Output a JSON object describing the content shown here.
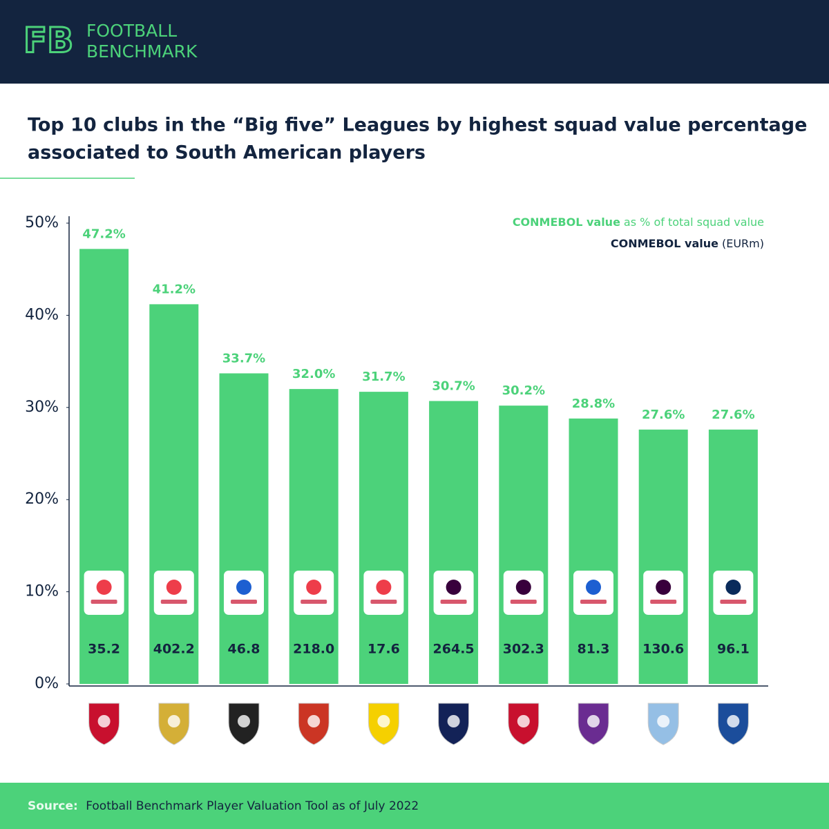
{
  "header": {
    "logo_mark": "FB",
    "brand_line1": "FOOTBALL",
    "brand_line2": "BENCHMARK"
  },
  "chart_data": {
    "type": "bar",
    "title": [
      "Top 10 clubs in the “Big five” Leagues by highest squad value percentage",
      "associated to South American players"
    ],
    "legend": [
      {
        "bold": "CONMEBOL value",
        "text": "as % of total squad value",
        "color": "#4cd27a"
      },
      {
        "bold": "CONMEBOL value",
        "text": "(EURm)",
        "color": "#13243f"
      }
    ],
    "categories": [
      null,
      null,
      null,
      null,
      null,
      null,
      null,
      null,
      null,
      null
    ],
    "values": [
      47.2,
      41.2,
      33.7,
      32.0,
      31.7,
      30.7,
      30.2,
      28.8,
      27.6,
      27.6
    ],
    "value_labels": [
      "47.2%",
      "41.2%",
      "33.7%",
      "32.0%",
      "31.7%",
      "30.7%",
      "30.2%",
      "28.8%",
      "27.6%",
      "27.6%"
    ],
    "color": "#4cd27a",
    "eur_values": {
      "values": [
        35.2,
        402.2,
        46.8,
        218.0,
        17.6,
        264.5,
        302.3,
        81.3,
        130.6,
        96.1
      ],
      "value_labels": [
        "35.2",
        "402.2",
        "46.8",
        "218.0",
        "17.6",
        "264.5",
        "302.3",
        "81.3",
        "130.6",
        "96.1"
      ],
      "color": "#13243f"
    },
    "ylim": [
      0,
      50
    ],
    "yticks": [
      {
        "value": 0,
        "label": "0%"
      },
      {
        "value": 10,
        "label": "10%"
      },
      {
        "value": 20,
        "label": "20%"
      },
      {
        "value": 30,
        "label": "30%"
      },
      {
        "value": 40,
        "label": "40%"
      },
      {
        "value": 50,
        "label": "50%"
      }
    ],
    "grid": false
  },
  "footer": {
    "source_label": "Source:",
    "source_text": "Football Benchmark Player Valuation Tool as of July 2022"
  }
}
